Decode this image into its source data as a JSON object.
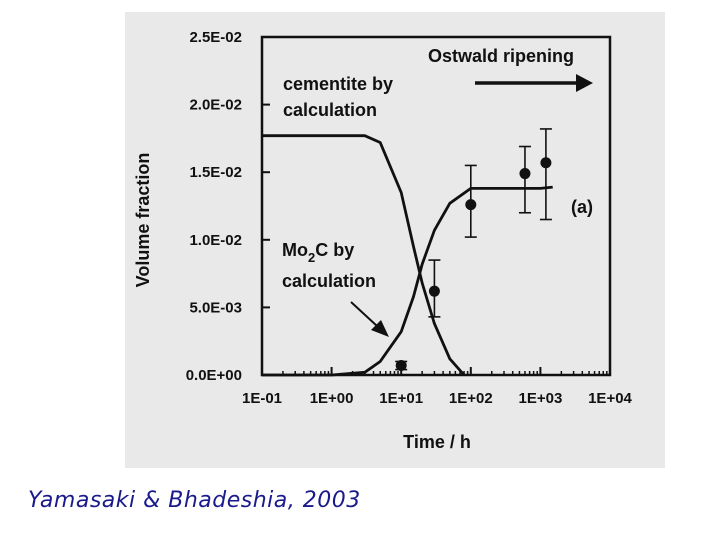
{
  "caption": "Yamasaki & Bhadeshia, 2003",
  "chart_data": {
    "type": "line",
    "xscale": "log",
    "xlim": [
      0.1,
      10000
    ],
    "ylim": [
      0,
      0.025
    ],
    "xticks": [
      "1E-01",
      "1E+00",
      "1E+01",
      "1E+02",
      "1E+03",
      "1E+04"
    ],
    "xtick_values": [
      0.1,
      1,
      10,
      100,
      1000,
      10000
    ],
    "yticks": [
      "0.0E+00",
      "5.0E-03",
      "1.0E-02",
      "1.5E-02",
      "2.0E-02",
      "2.5E-02"
    ],
    "ytick_values": [
      0,
      0.005,
      0.01,
      0.015,
      0.02,
      0.025
    ],
    "xlabel": "Time / h",
    "ylabel": "Volume fraction",
    "grid": false,
    "series": [
      {
        "name": "cementite by calculation",
        "x": [
          0.1,
          1,
          3,
          5,
          10,
          15,
          20,
          30,
          50,
          80
        ],
        "y": [
          0.0177,
          0.0177,
          0.0177,
          0.0172,
          0.0135,
          0.0095,
          0.0068,
          0.0038,
          0.0012,
          0.0
        ]
      },
      {
        "name": "Mo2C by calculation",
        "x": [
          0.1,
          1,
          3,
          5,
          10,
          15,
          20,
          30,
          50,
          100,
          300,
          1000,
          1500
        ],
        "y": [
          0.0,
          0.0,
          0.0002,
          0.001,
          0.0032,
          0.0058,
          0.0082,
          0.0107,
          0.0127,
          0.0138,
          0.0138,
          0.0138,
          0.0139
        ]
      }
    ],
    "measured": {
      "x": [
        10,
        30,
        100,
        600,
        1200
      ],
      "y": [
        0.0007,
        0.0062,
        0.0126,
        0.0149,
        0.0157
      ],
      "err_low": [
        0.0003,
        0.0019,
        0.0024,
        0.0029,
        0.0042
      ],
      "err_high": [
        0.0003,
        0.0023,
        0.0029,
        0.002,
        0.0025
      ]
    },
    "annotations": {
      "ostwald": "Ostwald ripening",
      "cementite_line1": "cementite by",
      "cementite_line2": "calculation",
      "mo2c_prefix": "Mo",
      "mo2c_sub": "2",
      "mo2c_suffix": "C by",
      "mo2c_line2": "calculation",
      "panel": "(a)"
    }
  }
}
